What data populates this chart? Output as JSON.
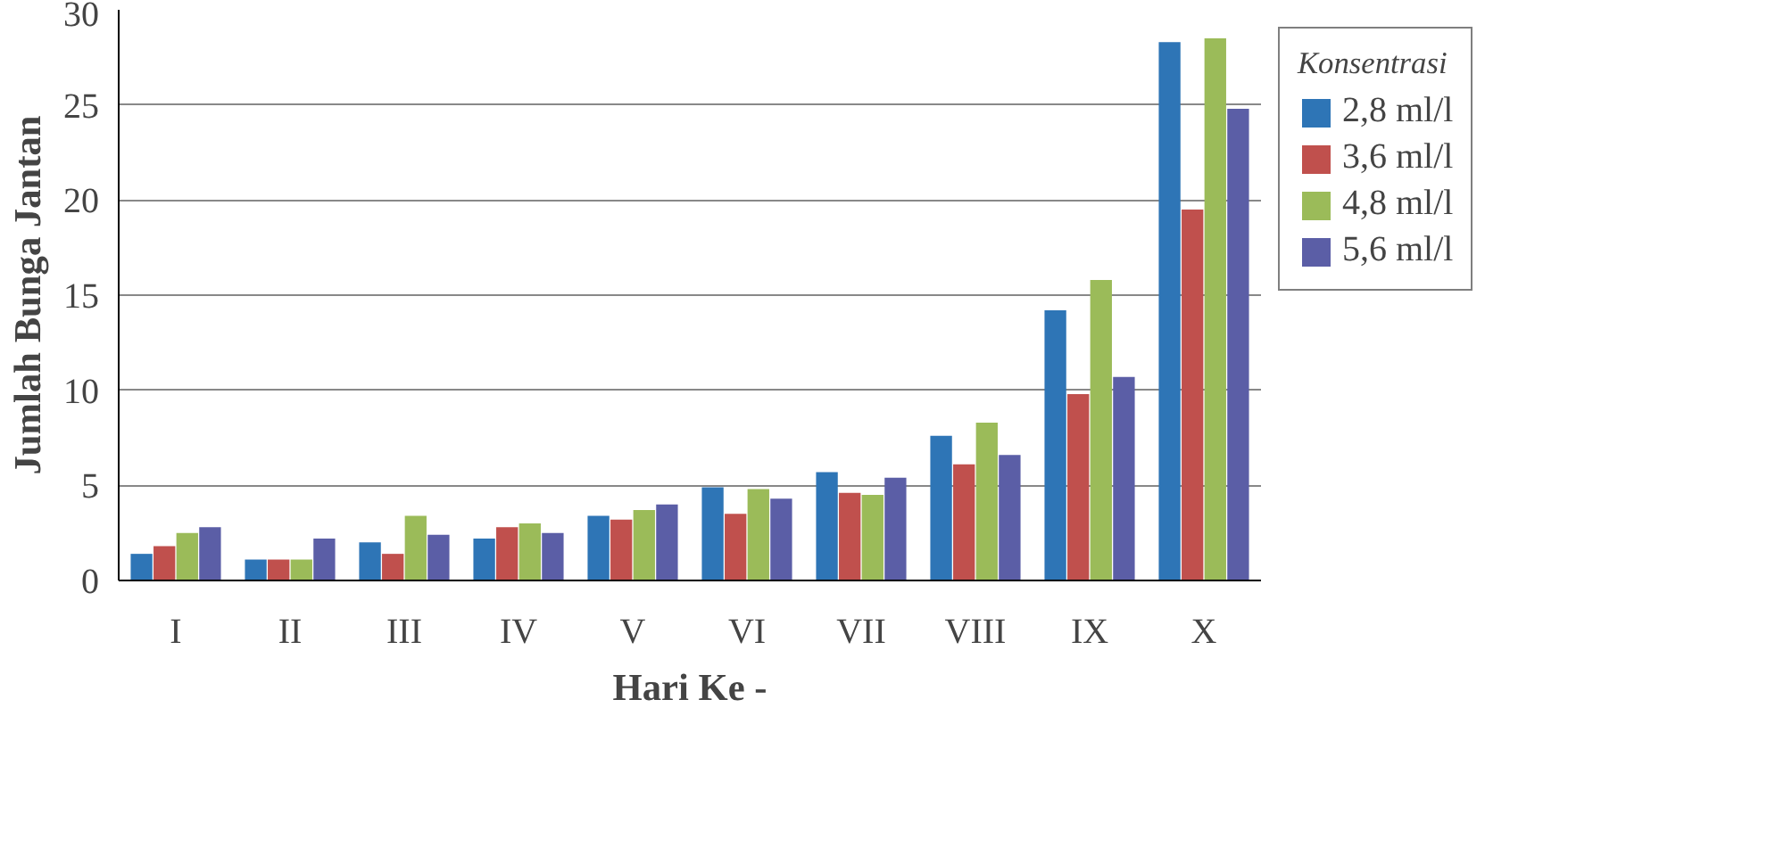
{
  "chart_data": {
    "type": "bar",
    "xlabel": "Hari Ke -",
    "ylabel": "Jumlah Bunga Jantan",
    "legend_title": "Konsentrasi",
    "legend": "right",
    "categories": [
      "I",
      "II",
      "III",
      "IV",
      "V",
      "VI",
      "VII",
      "VIII",
      "IX",
      "X"
    ],
    "series": [
      {
        "name": "2,8 ml/l",
        "color": "#2e75b6",
        "values": [
          1.4,
          1.1,
          2.0,
          2.2,
          3.4,
          4.9,
          5.7,
          7.6,
          14.2,
          28.3
        ]
      },
      {
        "name": "3,6 ml/l",
        "color": "#c0504d",
        "values": [
          1.8,
          1.1,
          1.4,
          2.8,
          3.2,
          3.5,
          4.6,
          6.1,
          9.8,
          19.5
        ]
      },
      {
        "name": "4,8 ml/l",
        "color": "#9bbb59",
        "values": [
          2.5,
          1.1,
          3.4,
          3.0,
          3.7,
          4.8,
          4.5,
          8.3,
          15.8,
          28.5
        ]
      },
      {
        "name": "5,6 ml/l",
        "color": "#5b5ea6",
        "values": [
          2.8,
          2.2,
          2.4,
          2.5,
          4.0,
          4.3,
          5.4,
          6.6,
          10.7,
          24.8
        ]
      }
    ],
    "ylim": [
      0,
      30
    ],
    "yticks": [
      0,
      5,
      10,
      15,
      20,
      25,
      30
    ],
    "grid": "y"
  }
}
